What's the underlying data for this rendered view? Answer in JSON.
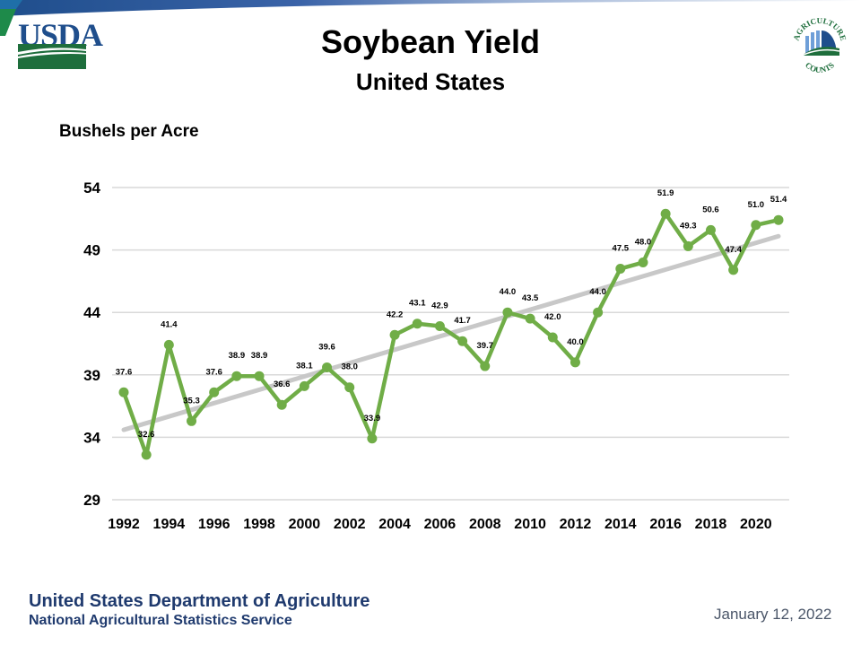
{
  "header": {
    "title": "Soybean Yield",
    "subtitle": "United States",
    "logo_left": "USDA",
    "logo_right_top": "AGRICULTURE",
    "logo_right_bottom": "COUNTS"
  },
  "footer": {
    "department": "United States Department of Agriculture",
    "service": "National Agricultural Statistics Service",
    "date": "January 12, 2022"
  },
  "colors": {
    "series": "#70ad47",
    "trend": "#c8c8c8",
    "grid": "#d9d9d9",
    "usda_blue": "#1f4e8c",
    "usda_green": "#1e7a3c",
    "footer_text": "#1f3a6e"
  },
  "chart_data": {
    "type": "line",
    "title": "Soybean Yield",
    "subtitle": "United States",
    "xlabel": "",
    "ylabel": "Bushels per Acre",
    "ylim": [
      29,
      54
    ],
    "yticks": [
      29,
      34,
      39,
      44,
      49,
      54
    ],
    "xticks": [
      1992,
      1994,
      1996,
      1998,
      2000,
      2002,
      2004,
      2006,
      2008,
      2010,
      2012,
      2014,
      2016,
      2018,
      2020
    ],
    "grid": true,
    "legend": "none",
    "x": [
      1992,
      1993,
      1994,
      1995,
      1996,
      1997,
      1998,
      1999,
      2000,
      2001,
      2002,
      2003,
      2004,
      2005,
      2006,
      2007,
      2008,
      2009,
      2010,
      2011,
      2012,
      2013,
      2014,
      2015,
      2016,
      2017,
      2018,
      2019,
      2020,
      2021
    ],
    "series": [
      {
        "name": "Soybean Yield",
        "values": [
          37.6,
          32.6,
          41.4,
          35.3,
          37.6,
          38.9,
          38.9,
          36.6,
          38.1,
          39.6,
          38.0,
          33.9,
          42.2,
          43.1,
          42.9,
          41.7,
          39.7,
          44.0,
          43.5,
          42.0,
          40.0,
          44.0,
          47.5,
          48.0,
          51.9,
          49.3,
          50.6,
          47.4,
          51.0,
          51.4
        ],
        "labels": [
          "37.6",
          "32.6",
          "41.4",
          "35.3",
          "37.6",
          "38.9",
          "38.9",
          "36.6",
          "38.1",
          "39.6",
          "38.0",
          "33.9",
          "42.2",
          "43.1",
          "42.9",
          "41.7",
          "39.7",
          "44.0",
          "43.5",
          "42.0",
          "40.0",
          "44.0",
          "47.5",
          "48.0",
          "51.9",
          "49.3",
          "50.6",
          "47.4",
          "51.0",
          "51.4"
        ]
      }
    ],
    "trendline": {
      "name": "Linear trend",
      "x": [
        1992,
        2021
      ],
      "values": [
        34.6,
        50.1
      ]
    }
  }
}
